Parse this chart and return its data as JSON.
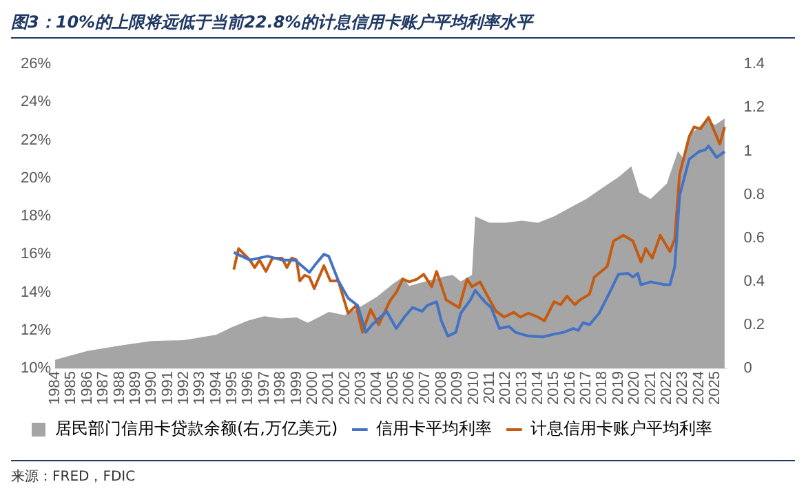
{
  "chart_data": {
    "type": "line",
    "title": "图3：10%的上限将远低于当前22.8%的计息信用卡账户平均利率水平",
    "xlim": [
      1984,
      2025.75
    ],
    "xticks": [
      1984,
      1985,
      1986,
      1987,
      1988,
      1989,
      1990,
      1991,
      1992,
      1993,
      1994,
      1995,
      1996,
      1997,
      1998,
      1999,
      2000,
      2001,
      2002,
      2003,
      2004,
      2005,
      2006,
      2007,
      2008,
      2009,
      2010,
      2011,
      2012,
      2013,
      2014,
      2015,
      2016,
      2017,
      2018,
      2019,
      2020,
      2021,
      2022,
      2023,
      2024,
      2025
    ],
    "ylim": [
      10,
      26
    ],
    "yticks": [
      {
        "value": 10,
        "label": "10%"
      },
      {
        "value": 12,
        "label": "12%"
      },
      {
        "value": 14,
        "label": "14%"
      },
      {
        "value": 16,
        "label": "16%"
      },
      {
        "value": 18,
        "label": "18%"
      },
      {
        "value": 20,
        "label": "20%"
      },
      {
        "value": 22,
        "label": "22%"
      },
      {
        "value": 24,
        "label": "24%"
      },
      {
        "value": 26,
        "label": "26%"
      }
    ],
    "y2lim": [
      0,
      1.4
    ],
    "y2ticks": [
      0,
      0.2,
      0.4,
      0.6,
      0.8,
      1,
      1.2,
      1.4
    ],
    "legend": "bottom",
    "grid": false,
    "series": [
      {
        "name": "居民部门信用卡贷款余额(右,万亿美元)",
        "type": "area",
        "axis": "y2",
        "color": "#a5a5a5",
        "x": [
          1984,
          1986,
          1988,
          1990,
          1992,
          1994,
          1995,
          1996,
          1997,
          1998,
          1999,
          1999.7,
          2000.5,
          2001,
          2002,
          2003,
          2004,
          2005,
          2005.6,
          2006,
          2007,
          2008,
          2008.7,
          2009.2,
          2009.9,
          2010.1,
          2011,
          2012,
          2013,
          2014,
          2015,
          2016,
          2017,
          2018,
          2019,
          2019.8,
          2020.3,
          2021,
          2022,
          2022.7,
          2023,
          2023.5,
          2024,
          2024.5,
          2025,
          2025.6
        ],
        "values": [
          0.04,
          0.08,
          0.105,
          0.126,
          0.13,
          0.155,
          0.19,
          0.22,
          0.24,
          0.23,
          0.235,
          0.21,
          0.24,
          0.26,
          0.245,
          0.285,
          0.33,
          0.39,
          0.42,
          0.38,
          0.4,
          0.42,
          0.43,
          0.4,
          0.43,
          0.7,
          0.67,
          0.67,
          0.68,
          0.67,
          0.7,
          0.74,
          0.78,
          0.83,
          0.88,
          0.93,
          0.81,
          0.78,
          0.85,
          1.0,
          0.97,
          1.08,
          1.11,
          1.15,
          1.12,
          1.15
        ]
      },
      {
        "name": "信用卡平均利率",
        "color": "#4472c4",
        "x": [
          1995.1,
          1996.1,
          1997.2,
          1998.1,
          1998.9,
          1999.8,
          2000.2,
          2000.7,
          2001,
          2001.6,
          2002.2,
          2002.8,
          2003.3,
          2003.7,
          2004.6,
          2005.2,
          2005.7,
          2006.2,
          2006.8,
          2007.1,
          2007.7,
          2008,
          2008.4,
          2008.9,
          2009.2,
          2009.8,
          2010.1,
          2010.7,
          2011.1,
          2011.6,
          2012.2,
          2012.6,
          2013.4,
          2014.3,
          2015,
          2015.6,
          2016.2,
          2016.5,
          2016.8,
          2017.2,
          2017.8,
          2018.4,
          2019,
          2019.6,
          2019.9,
          2020.2,
          2020.4,
          2021,
          2021.9,
          2022.2,
          2022.5,
          2022.8,
          2023.4,
          2024,
          2024.4,
          2024.6,
          2025.1,
          2025.6
        ],
        "values": [
          16.1,
          15.7,
          15.9,
          15.7,
          15.7,
          15.05,
          15.5,
          16.0,
          15.9,
          14.6,
          13.7,
          13.3,
          11.9,
          12.3,
          13.0,
          12.1,
          12.7,
          13.2,
          13.0,
          13.3,
          13.5,
          12.5,
          11.7,
          11.9,
          12.9,
          13.6,
          14.1,
          13.5,
          13.2,
          12.1,
          12.2,
          11.9,
          11.7,
          11.66,
          11.8,
          11.9,
          12.1,
          12.0,
          12.4,
          12.3,
          12.9,
          13.9,
          14.95,
          15.0,
          14.8,
          15.0,
          14.4,
          14.55,
          14.4,
          14.4,
          15.35,
          19.1,
          21.0,
          21.4,
          21.5,
          21.7,
          21.1,
          21.4
        ]
      },
      {
        "name": "计息信用卡账户平均利率",
        "color": "#c55a11",
        "x": [
          1995.1,
          1995.4,
          1996.1,
          1996.4,
          1996.7,
          1997.1,
          1997.5,
          1998.1,
          1998.4,
          1998.7,
          1999,
          1999.2,
          1999.5,
          1999.8,
          2000.1,
          2000.7,
          2001.1,
          2001.6,
          2002.2,
          2002.7,
          2003.1,
          2003.6,
          2004.1,
          2004.8,
          2005.2,
          2005.6,
          2006,
          2006.5,
          2006.9,
          2007.4,
          2007.7,
          2008.3,
          2008.7,
          2009.1,
          2009.6,
          2009.9,
          2010.4,
          2011,
          2011.4,
          2011.9,
          2012.5,
          2012.9,
          2013.4,
          2014,
          2014.4,
          2015,
          2015.4,
          2015.8,
          2016.3,
          2016.6,
          2017.2,
          2017.5,
          2018.3,
          2018.7,
          2019.3,
          2019.9,
          2020.4,
          2020.7,
          2021.1,
          2021.6,
          2022.2,
          2022.5,
          2022.8,
          2023.4,
          2023.7,
          2024.1,
          2024.6,
          2025.3,
          2025.6
        ],
        "values": [
          15.2,
          16.3,
          15.7,
          15.3,
          15.7,
          15.1,
          15.8,
          15.8,
          15.3,
          15.8,
          15.7,
          14.6,
          14.9,
          14.8,
          14.2,
          15.4,
          14.6,
          14.6,
          12.9,
          13.3,
          11.9,
          13.1,
          12.3,
          13.55,
          14.0,
          14.7,
          14.55,
          14.7,
          14.95,
          14.3,
          15.1,
          13.6,
          13.4,
          13.2,
          14.7,
          14.3,
          14.55,
          13.6,
          13.0,
          12.7,
          12.95,
          12.7,
          12.9,
          12.7,
          12.5,
          13.5,
          13.35,
          13.8,
          13.35,
          13.6,
          13.9,
          14.8,
          15.35,
          16.7,
          17.0,
          16.7,
          15.6,
          16.3,
          15.8,
          17.0,
          16.15,
          16.8,
          20.2,
          22.2,
          22.7,
          22.6,
          23.2,
          21.8,
          22.7
        ]
      }
    ],
    "annotations": [
      "来源：FRED，FDIC"
    ]
  }
}
